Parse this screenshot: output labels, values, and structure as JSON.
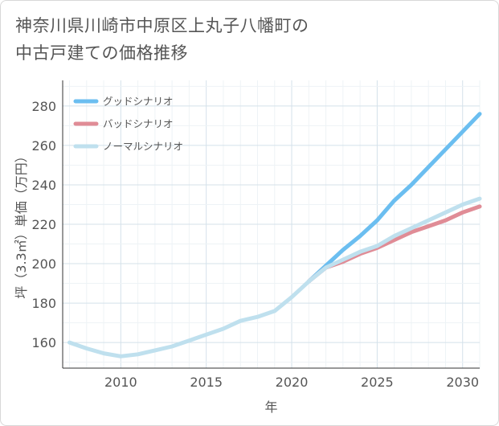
{
  "title_lines": [
    "神奈川県川崎市中原区上丸子八幡町の",
    "中古戸建ての価格推移"
  ],
  "chart_data": {
    "type": "line",
    "title": "神奈川県川崎市中原区上丸子八幡町の中古戸建ての価格推移",
    "xlabel": "年",
    "ylabel": "坪（3.3㎡）単価（万円）",
    "xlim": [
      2006.6,
      2031
    ],
    "ylim": [
      147,
      293
    ],
    "xticks": [
      2010,
      2015,
      2020,
      2025,
      2030
    ],
    "yticks": [
      160,
      180,
      200,
      220,
      240,
      260,
      280
    ],
    "grid": true,
    "legend_position": "top-left",
    "series": [
      {
        "name": "グッドシナリオ",
        "color": "#6bbef0",
        "x": [
          2021,
          2022,
          2023,
          2024,
          2025,
          2026,
          2027,
          2028,
          2029,
          2030,
          2031
        ],
        "y": [
          191,
          199,
          207,
          214,
          222,
          232,
          240,
          249,
          258,
          267,
          276
        ]
      },
      {
        "name": "バッドシナリオ",
        "color": "#e08c96",
        "x": [
          2021,
          2022,
          2023,
          2024,
          2025,
          2026,
          2027,
          2028,
          2029,
          2030,
          2031
        ],
        "y": [
          191,
          198,
          201,
          205,
          208,
          212,
          216,
          219,
          222,
          226,
          229
        ]
      },
      {
        "name": "ノーマルシナリオ",
        "color": "#bfe0ee",
        "x": [
          2007,
          2008,
          2009,
          2010,
          2011,
          2012,
          2013,
          2014,
          2015,
          2016,
          2017,
          2018,
          2019,
          2020,
          2021,
          2022,
          2023,
          2024,
          2025,
          2026,
          2027,
          2028,
          2029,
          2030,
          2031
        ],
        "y": [
          160,
          157,
          154.5,
          153,
          154,
          156,
          158,
          161,
          164,
          167,
          171,
          173,
          176,
          183,
          191,
          198,
          202,
          206,
          209,
          214,
          218,
          222,
          226,
          230,
          233
        ]
      }
    ]
  }
}
